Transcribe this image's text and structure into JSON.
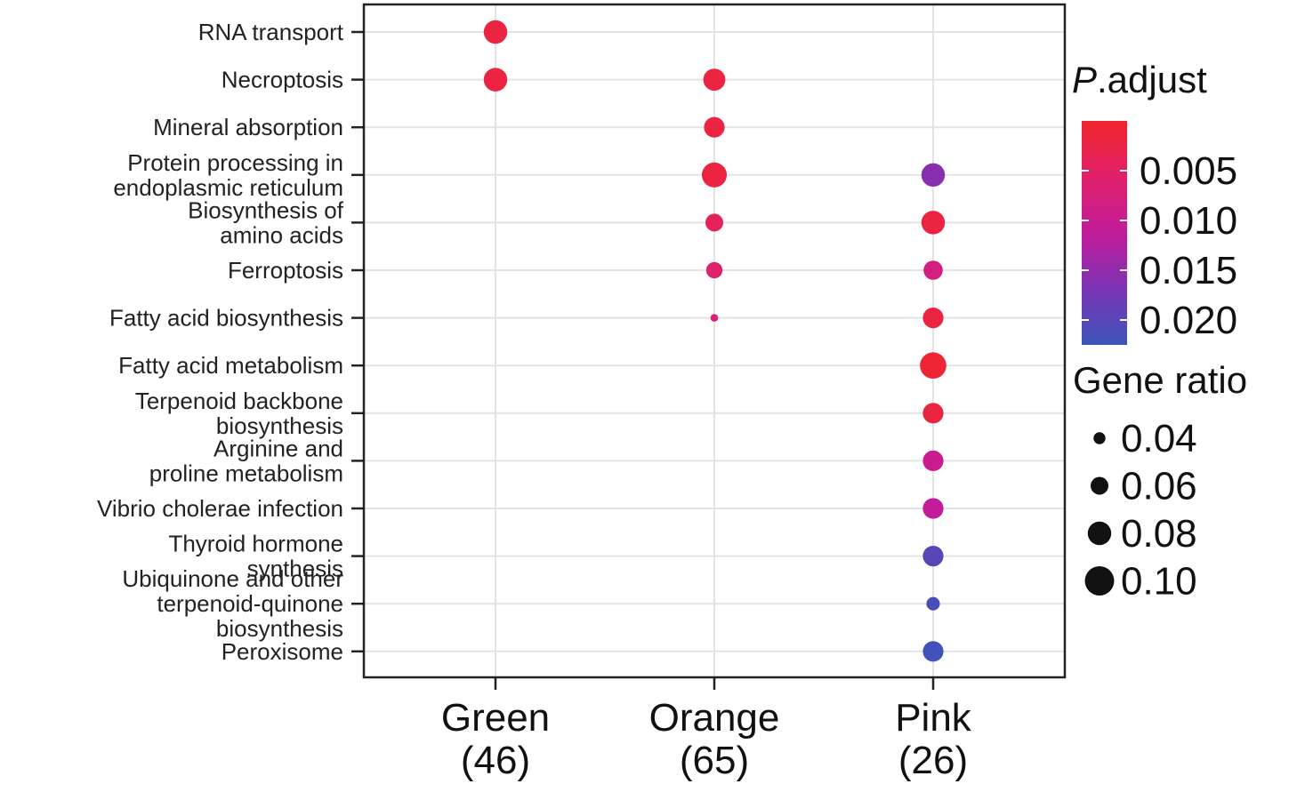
{
  "chart_data": {
    "type": "scatter",
    "title": "",
    "xlabel": "",
    "ylabel": "",
    "grid": true,
    "legend_position": "right",
    "x_categories": [
      [
        "Green",
        "(46)"
      ],
      [
        "Orange",
        "(65)"
      ],
      [
        "Pink",
        "(26)"
      ]
    ],
    "y_categories": [
      [
        "RNA transport"
      ],
      [
        "Necroptosis"
      ],
      [
        "Mineral absorption"
      ],
      [
        "Protein processing in",
        "endoplasmic reticulum"
      ],
      [
        "Biosynthesis of",
        "amino acids"
      ],
      [
        "Ferroptosis"
      ],
      [
        "Fatty acid biosynthesis"
      ],
      [
        "Fatty acid metabolism"
      ],
      [
        "Terpenoid backbone",
        "biosynthesis"
      ],
      [
        "Arginine and",
        "proline metabolism"
      ],
      [
        "Vibrio cholerae infection"
      ],
      [
        "Thyroid hormone",
        "synthesis"
      ],
      [
        "Ubiquinone and other",
        "terpenoid-quinone",
        "biosynthesis"
      ],
      [
        "Peroxisome"
      ]
    ],
    "points": [
      {
        "x": 0,
        "y": 0,
        "gene_ratio": 0.08,
        "p_adjust": 0.002
      },
      {
        "x": 0,
        "y": 1,
        "gene_ratio": 0.08,
        "p_adjust": 0.002
      },
      {
        "x": 1,
        "y": 1,
        "gene_ratio": 0.075,
        "p_adjust": 0.002
      },
      {
        "x": 1,
        "y": 2,
        "gene_ratio": 0.07,
        "p_adjust": 0.002
      },
      {
        "x": 1,
        "y": 3,
        "gene_ratio": 0.085,
        "p_adjust": 0.002
      },
      {
        "x": 1,
        "y": 4,
        "gene_ratio": 0.06,
        "p_adjust": 0.004
      },
      {
        "x": 1,
        "y": 5,
        "gene_ratio": 0.055,
        "p_adjust": 0.006
      },
      {
        "x": 1,
        "y": 6,
        "gene_ratio": 0.025,
        "p_adjust": 0.007
      },
      {
        "x": 2,
        "y": 3,
        "gene_ratio": 0.08,
        "p_adjust": 0.016
      },
      {
        "x": 2,
        "y": 4,
        "gene_ratio": 0.08,
        "p_adjust": 0.002
      },
      {
        "x": 2,
        "y": 5,
        "gene_ratio": 0.065,
        "p_adjust": 0.008
      },
      {
        "x": 2,
        "y": 6,
        "gene_ratio": 0.07,
        "p_adjust": 0.002
      },
      {
        "x": 2,
        "y": 7,
        "gene_ratio": 0.09,
        "p_adjust": 0.001
      },
      {
        "x": 2,
        "y": 8,
        "gene_ratio": 0.07,
        "p_adjust": 0.002
      },
      {
        "x": 2,
        "y": 9,
        "gene_ratio": 0.07,
        "p_adjust": 0.01
      },
      {
        "x": 2,
        "y": 10,
        "gene_ratio": 0.07,
        "p_adjust": 0.011
      },
      {
        "x": 2,
        "y": 11,
        "gene_ratio": 0.07,
        "p_adjust": 0.02
      },
      {
        "x": 2,
        "y": 12,
        "gene_ratio": 0.045,
        "p_adjust": 0.021
      },
      {
        "x": 2,
        "y": 13,
        "gene_ratio": 0.07,
        "p_adjust": 0.022
      }
    ],
    "color_legend": {
      "title_italic": "P",
      "title_rest": ".adjust",
      "ticks": [
        0.005,
        0.01,
        0.015,
        0.02
      ],
      "tick_labels": [
        "0.005",
        "0.010",
        "0.015",
        "0.020"
      ],
      "range": [
        0.0,
        0.0225
      ],
      "colors": [
        "#f0262a",
        "#e0206a",
        "#c21c9a",
        "#7b34b4",
        "#3b55bb"
      ]
    },
    "size_legend": {
      "title": "Gene ratio",
      "values": [
        0.04,
        0.06,
        0.08,
        0.1
      ],
      "labels": [
        "0.04",
        "0.06",
        "0.08",
        "0.10"
      ]
    }
  }
}
